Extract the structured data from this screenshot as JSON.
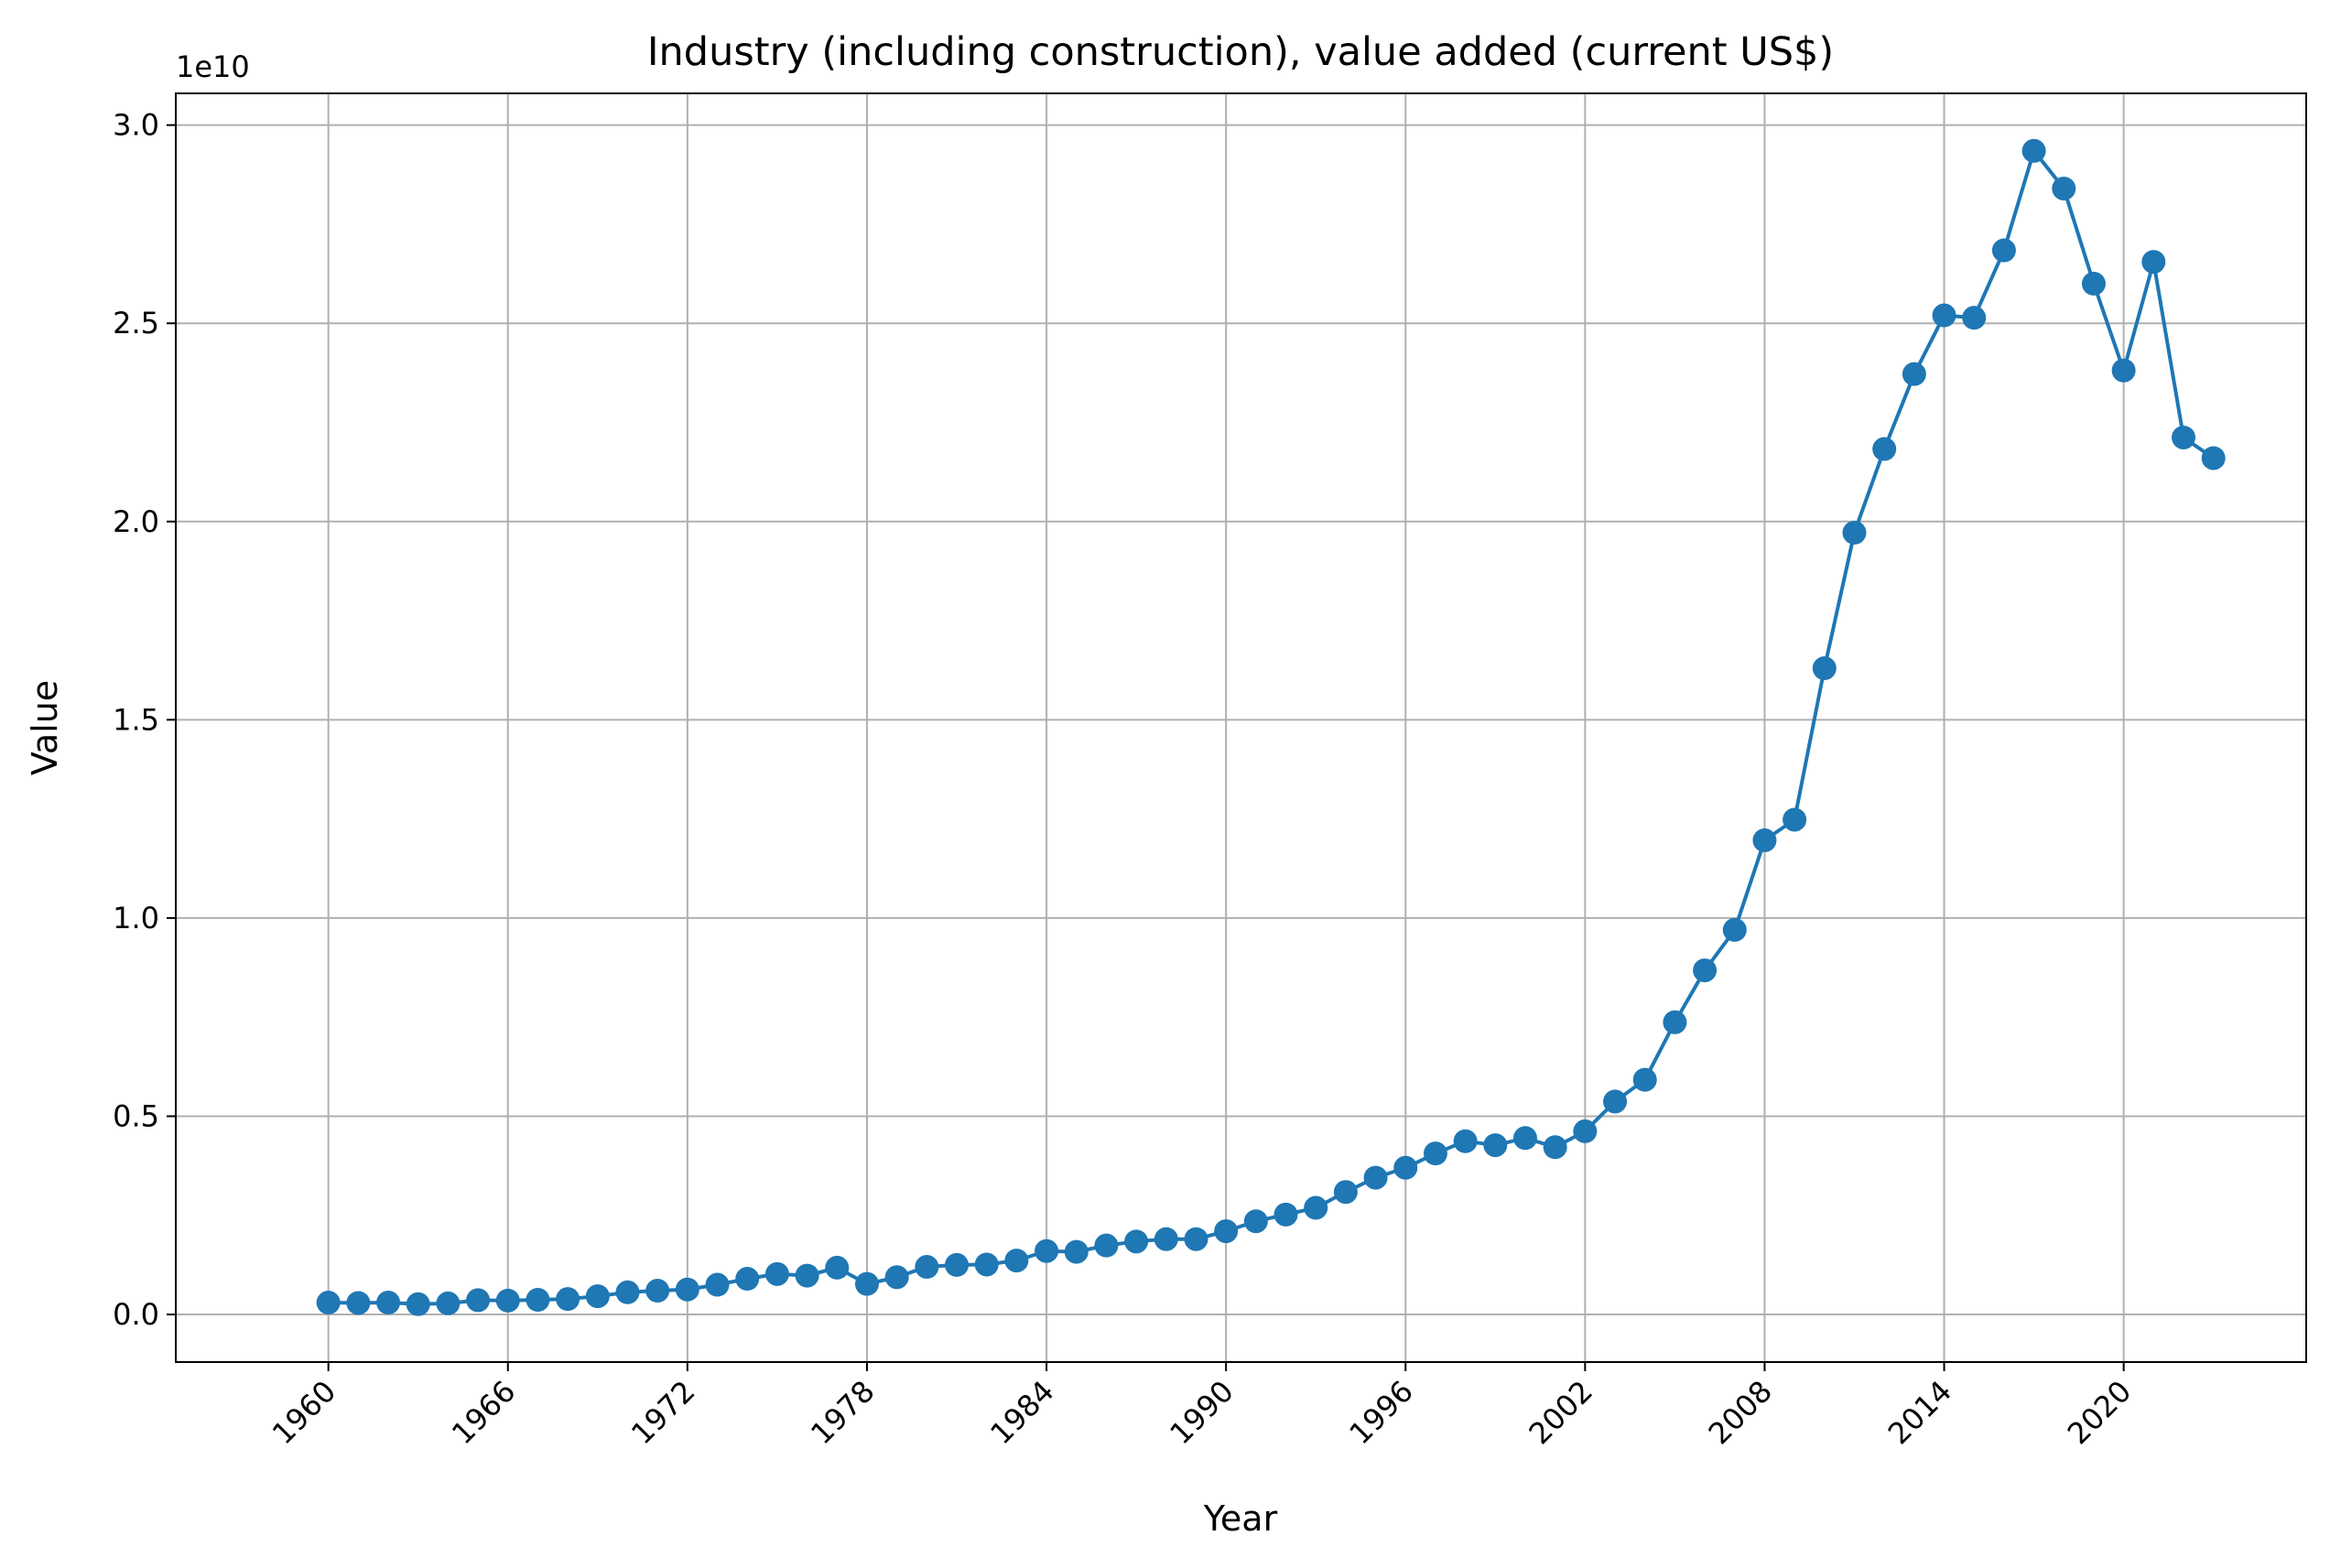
{
  "chart_data": {
    "type": "line",
    "title": "Industry (including construction), value added (current US$)",
    "xlabel": "Year",
    "ylabel": "Value",
    "y_exponent_label": "1e10",
    "y_scale_factor": 10000000000,
    "xlim": [
      1954.9,
      2026.1
    ],
    "ylim": [
      -1200000000.0,
      30800000000.0
    ],
    "x_ticks": [
      1960,
      1966,
      1972,
      1978,
      1984,
      1990,
      1996,
      2002,
      2008,
      2014,
      2020
    ],
    "x_tick_labels": [
      "1960",
      "1966",
      "1972",
      "1978",
      "1984",
      "1990",
      "1996",
      "2002",
      "2008",
      "2014",
      "2020"
    ],
    "y_ticks": [
      0,
      5000000000.0,
      10000000000.0,
      15000000000.0,
      20000000000.0,
      25000000000.0,
      30000000000.0
    ],
    "y_tick_labels": [
      "0.0",
      "0.5",
      "1.0",
      "1.5",
      "2.0",
      "2.5",
      "3.0"
    ],
    "grid": true,
    "color": "#1f77b4",
    "x": [
      1960,
      1961,
      1962,
      1963,
      1964,
      1965,
      1966,
      1967,
      1968,
      1969,
      1970,
      1971,
      1972,
      1973,
      1974,
      1975,
      1976,
      1977,
      1978,
      1979,
      1980,
      1981,
      1982,
      1983,
      1984,
      1985,
      1986,
      1987,
      1988,
      1989,
      1990,
      1991,
      1992,
      1993,
      1994,
      1995,
      1996,
      1997,
      1998,
      1999,
      2000,
      2001,
      2002,
      2003,
      2004,
      2005,
      2006,
      2007,
      2008,
      2009,
      2010,
      2011,
      2012,
      2013,
      2014,
      2015,
      2016,
      2017,
      2018,
      2019,
      2020,
      2021,
      2022,
      2023
    ],
    "values": [
      300000000.0,
      290000000.0,
      300000000.0,
      260000000.0,
      280000000.0,
      360000000.0,
      350000000.0,
      370000000.0,
      390000000.0,
      460000000.0,
      560000000.0,
      600000000.0,
      630000000.0,
      750000000.0,
      900000000.0,
      1020000000.0,
      980000000.0,
      1180000000.0,
      770000000.0,
      940000000.0,
      1200000000.0,
      1250000000.0,
      1260000000.0,
      1360000000.0,
      1600000000.0,
      1580000000.0,
      1740000000.0,
      1840000000.0,
      1900000000.0,
      1900000000.0,
      2100000000.0,
      2350000000.0,
      2520000000.0,
      2690000000.0,
      3090000000.0,
      3450000000.0,
      3700000000.0,
      4060000000.0,
      4370000000.0,
      4270000000.0,
      4450000000.0,
      4220000000.0,
      4620000000.0,
      5370000000.0,
      5920000000.0,
      7370000000.0,
      8680000000.0,
      9700000000.0,
      11960000000.0,
      12480000000.0,
      16300000000.0,
      19720000000.0,
      21830000000.0,
      23720000000.0,
      25200000000.0,
      25140000000.0,
      26840000000.0,
      29350000000.0,
      28400000000.0,
      26000000000.0,
      23810000000.0,
      26550000000.0,
      22120000000.0,
      21600000000.0
    ]
  }
}
